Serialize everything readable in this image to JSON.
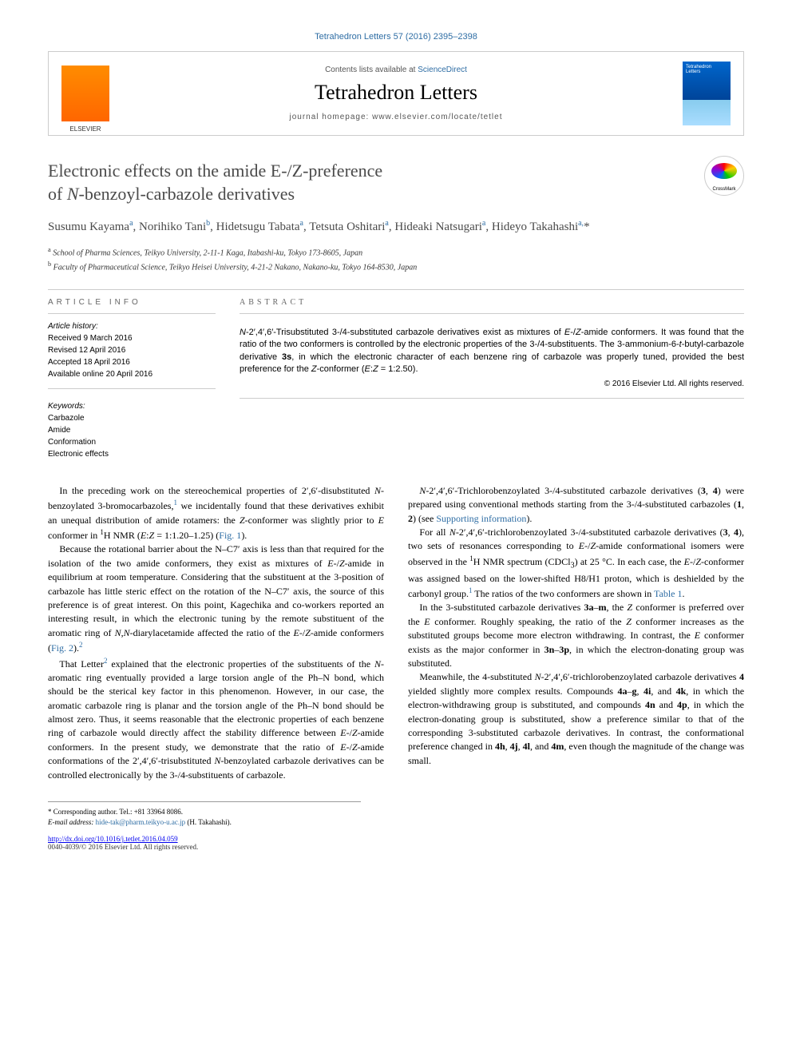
{
  "header": {
    "citation": "Tetrahedron Letters 57 (2016) 2395–2398",
    "contents_prefix": "Contents lists available at ",
    "contents_link": "ScienceDirect",
    "journal_name": "Tetrahedron Letters",
    "homepage_prefix": "journal homepage: ",
    "homepage_url": "www.elsevier.com/locate/tetlet"
  },
  "article": {
    "title_line1": "Electronic effects on the amide E-/Z-preference",
    "title_line2": "of N-benzoyl-carbazole derivatives",
    "crossmark_label": "CrossMark",
    "authors_html": "Susumu Kayama<sup>a</sup>, Norihiko Tani<sup>b</sup>, Hidetsugu Tabata<sup>a</sup>, Tetsuta Oshitari<sup>a</sup>, Hideaki Natsugari<sup>a</sup>, Hideyo Takahashi<sup>a,*</sup>",
    "affiliations": {
      "a": "School of Pharma Sciences, Teikyo University, 2-11-1 Kaga, Itabashi-ku, Tokyo 173-8605, Japan",
      "b": "Faculty of Pharmaceutical Science, Teikyo Heisei University, 4-21-2 Nakano, Nakano-ku, Tokyo 164-8530, Japan"
    }
  },
  "info": {
    "heading": "article info",
    "history_label": "Article history:",
    "received": "Received 9 March 2016",
    "revised": "Revised 12 April 2016",
    "accepted": "Accepted 18 April 2016",
    "online": "Available online 20 April 2016",
    "keywords_label": "Keywords:",
    "keywords": [
      "Carbazole",
      "Amide",
      "Conformation",
      "Electronic effects"
    ]
  },
  "abstract": {
    "heading": "abstract",
    "text": "N-2′,4′,6′-Trisubstituted 3-/4-substituted carbazole derivatives exist as mixtures of E-/Z-amide conformers. It was found that the ratio of the two conformers is controlled by the electronic properties of the 3-/4-substituents. The 3-ammonium-6-t-butyl-carbazole derivative 3s, in which the electronic character of each benzene ring of carbazole was properly tuned, provided the best preference for the Z-conformer (E:Z = 1:2.50).",
    "copyright": "© 2016 Elsevier Ltd. All rights reserved."
  },
  "body": {
    "p1": "In the preceding work on the stereochemical properties of 2′,6′-disubstituted N-benzoylated 3-bromocarbazoles,¹ we incidentally found that these derivatives exhibit an unequal distribution of amide rotamers: the Z-conformer was slightly prior to E conformer in ¹H NMR (E:Z = 1:1.20–1.25) (Fig. 1).",
    "p2": "Because the rotational barrier about the N–C7′ axis is less than that required for the isolation of the two amide conformers, they exist as mixtures of E-/Z-amide in equilibrium at room temperature. Considering that the substituent at the 3-position of carbazole has little steric effect on the rotation of the N–C7′ axis, the source of this preference is of great interest. On this point, Kagechika and co-workers reported an interesting result, in which the electronic tuning by the remote substituent of the aromatic ring of N,N-diarylacetamide affected the ratio of the E-/Z-amide conformers (Fig. 2).²",
    "p3": "That Letter² explained that the electronic properties of the substituents of the N-aromatic ring eventually provided a large torsion angle of the Ph–N bond, which should be the sterical key factor in this phenomenon. However, in our case, the aromatic carbazole ring is planar and the torsion angle of the Ph–N bond should be almost zero. Thus, it seems reasonable that the electronic properties of each benzene ring of carbazole would directly affect the stability difference between E-/Z-amide conformers. In the present study, we demonstrate that the ratio of E-/Z-amide conformations of the 2′,4′,6′-trisubstituted N-benzoylated carbazole derivatives can be controlled electronically by the 3-/4-substituents of carbazole.",
    "p4": "N-2′,4′,6′-Trichlorobenzoylated 3-/4-substituted carbazole derivatives (3, 4) were prepared using conventional methods starting from the 3-/4-substituted carbazoles (1, 2) (see Supporting information).",
    "p5": "For all N-2′,4′,6′-trichlorobenzoylated 3-/4-substituted carbazole derivatives (3, 4), two sets of resonances corresponding to E-/Z-amide conformational isomers were observed in the ¹H NMR spectrum (CDCl₃) at 25 °C. In each case, the E-/Z-conformer was assigned based on the lower-shifted H8/H1 proton, which is deshielded by the carbonyl group.¹ The ratios of the two conformers are shown in Table 1.",
    "p6": "In the 3-substituted carbazole derivatives 3a–m, the Z conformer is preferred over the E conformer. Roughly speaking, the ratio of the Z conformer increases as the substituted groups become more electron withdrawing. In contrast, the E conformer exists as the major conformer in 3n–3p, in which the electron-donating group was substituted.",
    "p7": "Meanwhile, the 4-substituted N-2′,4′,6′-trichlorobenzoylated carbazole derivatives 4 yielded slightly more complex results. Compounds 4a–g, 4i, and 4k, in which the electron-withdrawing group is substituted, and compounds 4n and 4p, in which the electron-donating group is substituted, show a preference similar to that of the corresponding 3-substituted carbazole derivatives. In contrast, the conformational preference changed in 4h, 4j, 4l, and 4m, even though the magnitude of the change was small."
  },
  "footer": {
    "corresponding": "* Corresponding author. Tel.: +81 33964 8086.",
    "email_label": "E-mail address: ",
    "email": "hide-tak@pharm.teikyo-u.ac.jp",
    "email_suffix": " (H. Takahashi).",
    "doi": "http://dx.doi.org/10.1016/j.tetlet.2016.04.059",
    "issn_rights": "0040-4039/© 2016 Elsevier Ltd. All rights reserved."
  },
  "colors": {
    "link": "#2e6da4",
    "text": "#000000",
    "heading_gray": "#4a4a4a",
    "border": "#cccccc"
  }
}
